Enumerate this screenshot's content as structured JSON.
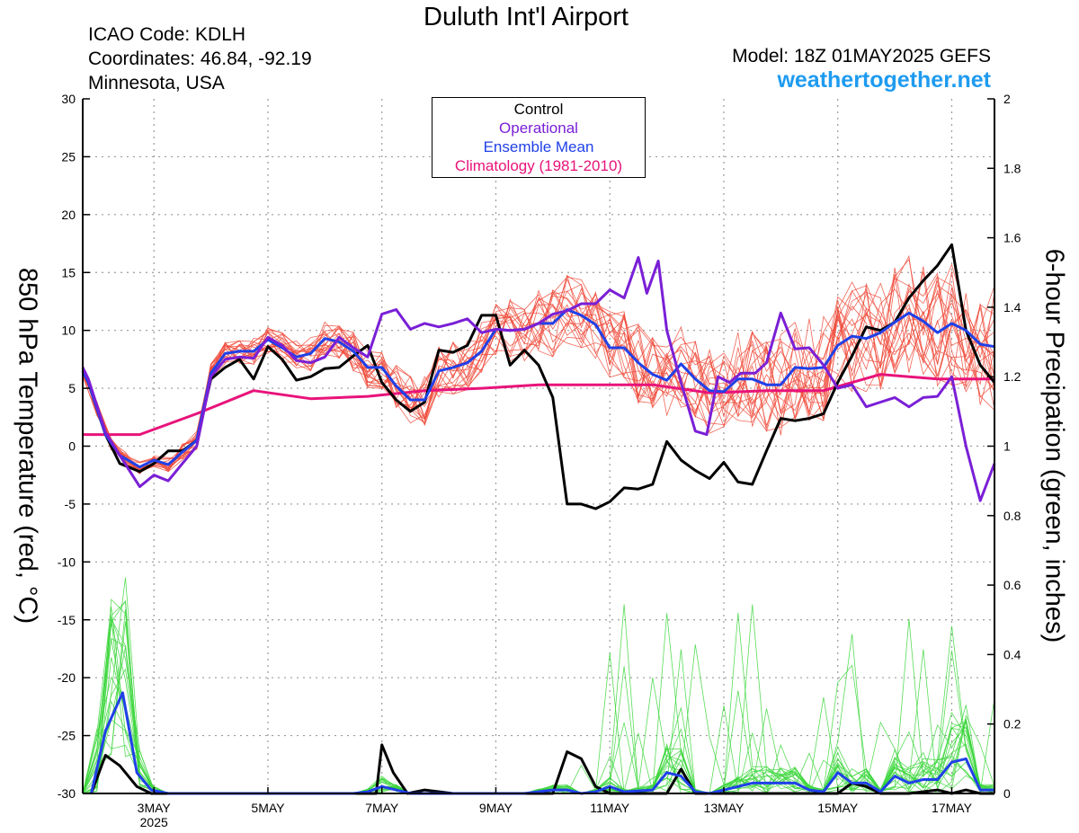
{
  "header": {
    "title": "Duluth Int'l Airport",
    "icao": "ICAO Code: KDLH",
    "coords": "Coordinates: 46.84, -92.19",
    "region": "Minnesota, USA",
    "model": "Model: 18Z 01MAY2025 GEFS",
    "site": "weathertogether.net"
  },
  "colors": {
    "control": "#000000",
    "operational": "#7a1fd6",
    "ensemble_mean": "#2040e8",
    "climatology": "#e8137a",
    "temp_members": "#f04a3a",
    "precip_members": "#3bd63b",
    "site": "#1e9bf0"
  },
  "chart_data": {
    "type": "line",
    "title": "Duluth Int'l Airport",
    "ylabel": "850 hPa Temperature (red, °C)",
    "y2label": "6-hour Precipation (green, inches)",
    "ylim": [
      -30,
      30
    ],
    "y2lim": [
      0,
      2
    ],
    "yticks": [
      30,
      25,
      20,
      15,
      10,
      5,
      0,
      -5,
      -10,
      -15,
      -20,
      -25,
      -30
    ],
    "y2ticks": [
      2,
      1.8,
      1.6,
      1.4,
      1.2,
      1,
      0.8,
      0.6,
      0.4,
      0.2,
      0
    ],
    "xlim": [
      1.75,
      17.75
    ],
    "xticks": [
      {
        "x": 3,
        "label": "3MAY",
        "sub": "2025"
      },
      {
        "x": 5,
        "label": "5MAY"
      },
      {
        "x": 7,
        "label": "7MAY"
      },
      {
        "x": 9,
        "label": "9MAY"
      },
      {
        "x": 11,
        "label": "11MAY"
      },
      {
        "x": 13,
        "label": "13MAY"
      },
      {
        "x": 15,
        "label": "15MAY"
      },
      {
        "x": 17,
        "label": "17MAY"
      }
    ],
    "grid": true,
    "legend": {
      "placement": "top-center",
      "entries": [
        "Control",
        "Operational",
        "Ensemble Mean",
        "Climatology (1981-2010)"
      ]
    },
    "temperature_series": [
      {
        "name": "Control",
        "color": "#000000",
        "points": [
          [
            1.75,
            6.5
          ],
          [
            1.85,
            5.5
          ],
          [
            2.15,
            1
          ],
          [
            2.4,
            -1.5
          ],
          [
            2.75,
            -2.2
          ],
          [
            3.0,
            -1.5
          ],
          [
            3.25,
            -0.4
          ],
          [
            3.5,
            -0.4
          ],
          [
            3.75,
            0.5
          ],
          [
            4.0,
            5.8
          ],
          [
            4.25,
            6.8
          ],
          [
            4.5,
            7.5
          ],
          [
            4.75,
            5.8
          ],
          [
            5.0,
            8.6
          ],
          [
            5.25,
            7.5
          ],
          [
            5.5,
            5.7
          ],
          [
            5.75,
            6
          ],
          [
            6.0,
            6.7
          ],
          [
            6.25,
            6.8
          ],
          [
            6.5,
            7.8
          ],
          [
            6.75,
            8.7
          ],
          [
            7.0,
            5.5
          ],
          [
            7.25,
            4
          ],
          [
            7.5,
            3
          ],
          [
            7.75,
            3.8
          ],
          [
            8.0,
            8.3
          ],
          [
            8.25,
            8.1
          ],
          [
            8.5,
            8.7
          ],
          [
            8.75,
            11.3
          ],
          [
            9.0,
            11.3
          ],
          [
            9.25,
            7
          ],
          [
            9.5,
            8.3
          ],
          [
            9.75,
            7
          ],
          [
            10.0,
            4.2
          ],
          [
            10.25,
            -5
          ],
          [
            10.5,
            -5
          ],
          [
            10.75,
            -5.4
          ],
          [
            11.0,
            -4.8
          ],
          [
            11.25,
            -3.6
          ],
          [
            11.5,
            -3.7
          ],
          [
            11.75,
            -3.3
          ],
          [
            12.0,
            0.4
          ],
          [
            12.25,
            -1.2
          ],
          [
            12.5,
            -2.1
          ],
          [
            12.75,
            -2.8
          ],
          [
            13.0,
            -1.4
          ],
          [
            13.25,
            -3.1
          ],
          [
            13.5,
            -3.3
          ],
          [
            13.75,
            -0.4
          ],
          [
            14.0,
            2.4
          ],
          [
            14.25,
            2.2
          ],
          [
            14.5,
            2.4
          ],
          [
            14.75,
            2.8
          ],
          [
            15.0,
            5.5
          ],
          [
            15.25,
            7.8
          ],
          [
            15.5,
            10.3
          ],
          [
            15.75,
            10
          ],
          [
            16.0,
            10.7
          ],
          [
            16.25,
            12.8
          ],
          [
            16.5,
            14.3
          ],
          [
            16.75,
            15.6
          ],
          [
            17.0,
            17.4
          ],
          [
            17.25,
            10
          ],
          [
            17.5,
            7
          ],
          [
            17.75,
            5.5
          ]
        ]
      },
      {
        "name": "Operational",
        "color": "#7a1fd6",
        "points": [
          [
            1.75,
            6.8
          ],
          [
            1.85,
            5.8
          ],
          [
            2.15,
            1.2
          ],
          [
            2.4,
            -0.8
          ],
          [
            2.75,
            -3.5
          ],
          [
            3.0,
            -2.5
          ],
          [
            3.25,
            -3
          ],
          [
            3.5,
            -1.5
          ],
          [
            3.75,
            0
          ],
          [
            4.0,
            6
          ],
          [
            4.25,
            7.5
          ],
          [
            4.5,
            7.7
          ],
          [
            4.75,
            7.6
          ],
          [
            5.0,
            9.4
          ],
          [
            5.25,
            8.7
          ],
          [
            5.5,
            7.4
          ],
          [
            5.75,
            7.2
          ],
          [
            6.0,
            7.7
          ],
          [
            6.25,
            9.4
          ],
          [
            6.5,
            8.5
          ],
          [
            6.75,
            7.7
          ],
          [
            7.0,
            11.4
          ],
          [
            7.25,
            11.8
          ],
          [
            7.5,
            10.1
          ],
          [
            7.75,
            10.6
          ],
          [
            8.0,
            10.3
          ],
          [
            8.25,
            10.6
          ],
          [
            8.5,
            11
          ],
          [
            8.75,
            9.8
          ],
          [
            9.0,
            10.1
          ],
          [
            9.25,
            10
          ],
          [
            9.5,
            10.1
          ],
          [
            9.75,
            10.6
          ],
          [
            10.0,
            11.4
          ],
          [
            10.25,
            11.7
          ],
          [
            10.5,
            12.3
          ],
          [
            10.75,
            12.3
          ],
          [
            11.0,
            13.5
          ],
          [
            11.25,
            12.8
          ],
          [
            11.5,
            16.3
          ],
          [
            11.65,
            13.2
          ],
          [
            11.85,
            16
          ],
          [
            12.0,
            10
          ],
          [
            12.25,
            5.5
          ],
          [
            12.5,
            1.3
          ],
          [
            12.7,
            1
          ],
          [
            12.9,
            6
          ],
          [
            13.1,
            5.5
          ],
          [
            13.3,
            6.3
          ],
          [
            13.55,
            6.3
          ],
          [
            13.75,
            7.2
          ],
          [
            14.0,
            11.5
          ],
          [
            14.25,
            8.4
          ],
          [
            14.5,
            8.5
          ],
          [
            14.75,
            7
          ],
          [
            15.0,
            5
          ],
          [
            15.25,
            5.3
          ],
          [
            15.5,
            3.4
          ],
          [
            15.75,
            3.8
          ],
          [
            16.0,
            4.2
          ],
          [
            16.25,
            3.4
          ],
          [
            16.5,
            4.2
          ],
          [
            16.75,
            4.3
          ],
          [
            17.0,
            6
          ],
          [
            17.25,
            0
          ],
          [
            17.5,
            -4.7
          ],
          [
            17.75,
            -1.5
          ]
        ]
      },
      {
        "name": "Ensemble Mean",
        "color": "#2040e8",
        "points": [
          [
            1.75,
            6.5
          ],
          [
            1.85,
            5.5
          ],
          [
            2.15,
            1
          ],
          [
            2.4,
            -0.8
          ],
          [
            2.75,
            -1.8
          ],
          [
            3.0,
            -1.2
          ],
          [
            3.25,
            -1.6
          ],
          [
            3.5,
            -0.5
          ],
          [
            3.75,
            0.5
          ],
          [
            4.0,
            6.3
          ],
          [
            4.25,
            8
          ],
          [
            4.5,
            8.2
          ],
          [
            4.75,
            8.2
          ],
          [
            5.0,
            9.2
          ],
          [
            5.25,
            8.5
          ],
          [
            5.5,
            7.7
          ],
          [
            5.75,
            8
          ],
          [
            6.0,
            9.3
          ],
          [
            6.25,
            9
          ],
          [
            6.5,
            8.2
          ],
          [
            6.75,
            6.8
          ],
          [
            7.0,
            6.8
          ],
          [
            7.25,
            5.2
          ],
          [
            7.5,
            4
          ],
          [
            7.75,
            4
          ],
          [
            8.0,
            6.5
          ],
          [
            8.25,
            6.8
          ],
          [
            8.5,
            7.2
          ],
          [
            8.75,
            8.2
          ],
          [
            9.0,
            10.1
          ],
          [
            9.25,
            10
          ],
          [
            9.5,
            10.1
          ],
          [
            9.75,
            10.6
          ],
          [
            10.0,
            10.6
          ],
          [
            10.25,
            11.8
          ],
          [
            10.5,
            11.3
          ],
          [
            10.75,
            10.5
          ],
          [
            11.0,
            8.5
          ],
          [
            11.25,
            8.5
          ],
          [
            11.5,
            7.2
          ],
          [
            11.75,
            6.2
          ],
          [
            12.0,
            5.7
          ],
          [
            12.25,
            7.1
          ],
          [
            12.5,
            5.8
          ],
          [
            12.75,
            4.8
          ],
          [
            13.0,
            4.7
          ],
          [
            13.25,
            5.8
          ],
          [
            13.5,
            5.8
          ],
          [
            13.75,
            5.3
          ],
          [
            14.0,
            5.3
          ],
          [
            14.25,
            6.8
          ],
          [
            14.5,
            6.7
          ],
          [
            14.75,
            6.8
          ],
          [
            15.0,
            8.7
          ],
          [
            15.25,
            9.5
          ],
          [
            15.5,
            9.3
          ],
          [
            15.75,
            9.8
          ],
          [
            16.0,
            10.7
          ],
          [
            16.25,
            11.5
          ],
          [
            16.5,
            10.8
          ],
          [
            16.75,
            9.8
          ],
          [
            17.0,
            10.6
          ],
          [
            17.25,
            10
          ],
          [
            17.5,
            8.8
          ],
          [
            17.75,
            8.6
          ]
        ]
      },
      {
        "name": "Climatology (1981-2010)",
        "color": "#e8137a",
        "points": [
          [
            1.75,
            1
          ],
          [
            2.75,
            1
          ],
          [
            3.75,
            2.8
          ],
          [
            4.75,
            4.8
          ],
          [
            5.75,
            4.1
          ],
          [
            6.75,
            4.3
          ],
          [
            7.75,
            4.8
          ],
          [
            8.75,
            5
          ],
          [
            9.75,
            5.3
          ],
          [
            10.75,
            5.3
          ],
          [
            11.75,
            5.3
          ],
          [
            12.75,
            4.6
          ],
          [
            13.75,
            4.8
          ],
          [
            14.75,
            4.8
          ],
          [
            15.75,
            6.2
          ],
          [
            16.75,
            5.8
          ],
          [
            17.75,
            5.8
          ]
        ]
      }
    ],
    "precipitation_series": [
      {
        "name": "Control",
        "color": "#000000",
        "points": [
          [
            1.9,
            0
          ],
          [
            2.15,
            0.11
          ],
          [
            2.4,
            0.08
          ],
          [
            2.7,
            0.02
          ],
          [
            2.95,
            0
          ],
          [
            4.0,
            0
          ],
          [
            6.75,
            0
          ],
          [
            6.9,
            0
          ],
          [
            7.0,
            0.14
          ],
          [
            7.2,
            0.06
          ],
          [
            7.45,
            0
          ],
          [
            7.75,
            0.01
          ],
          [
            8.25,
            0
          ],
          [
            10.0,
            0
          ],
          [
            10.25,
            0.12
          ],
          [
            10.5,
            0.1
          ],
          [
            10.75,
            0.02
          ],
          [
            11.0,
            0
          ],
          [
            12.0,
            0
          ],
          [
            12.25,
            0.07
          ],
          [
            12.5,
            0
          ],
          [
            14.0,
            0
          ],
          [
            15.0,
            0
          ],
          [
            15.25,
            0.03
          ],
          [
            15.5,
            0.02
          ],
          [
            15.75,
            0
          ],
          [
            16.25,
            0
          ],
          [
            16.75,
            0.01
          ],
          [
            17.0,
            0
          ],
          [
            17.25,
            0.01
          ],
          [
            17.5,
            0
          ],
          [
            17.75,
            0
          ]
        ]
      },
      {
        "name": "Operational",
        "color": "#7a1fd6",
        "points": []
      },
      {
        "name": "Ensemble Mean",
        "color": "#2040e8",
        "points": [
          [
            1.9,
            0
          ],
          [
            2.15,
            0.18
          ],
          [
            2.45,
            0.29
          ],
          [
            2.7,
            0.06
          ],
          [
            2.95,
            0.01
          ],
          [
            3.25,
            0
          ],
          [
            6.5,
            0
          ],
          [
            6.75,
            0.005
          ],
          [
            7.0,
            0.02
          ],
          [
            7.25,
            0.01
          ],
          [
            7.5,
            0
          ],
          [
            9.5,
            0
          ],
          [
            10.0,
            0.01
          ],
          [
            10.25,
            0.01
          ],
          [
            10.5,
            0
          ],
          [
            10.75,
            0.005
          ],
          [
            11.0,
            0.02
          ],
          [
            11.25,
            0.005
          ],
          [
            11.75,
            0.01
          ],
          [
            12.0,
            0.06
          ],
          [
            12.25,
            0.05
          ],
          [
            12.5,
            0.005
          ],
          [
            12.75,
            0
          ],
          [
            13.25,
            0.02
          ],
          [
            13.5,
            0.03
          ],
          [
            13.75,
            0.03
          ],
          [
            14.0,
            0.03
          ],
          [
            14.25,
            0.03
          ],
          [
            14.5,
            0.01
          ],
          [
            14.75,
            0.005
          ],
          [
            15.0,
            0.06
          ],
          [
            15.25,
            0.03
          ],
          [
            15.5,
            0.03
          ],
          [
            15.75,
            0.005
          ],
          [
            16.0,
            0.05
          ],
          [
            16.25,
            0.03
          ],
          [
            16.5,
            0.04
          ],
          [
            16.75,
            0.04
          ],
          [
            17.0,
            0.09
          ],
          [
            17.25,
            0.1
          ],
          [
            17.5,
            0.01
          ],
          [
            17.75,
            0.01
          ]
        ]
      }
    ]
  }
}
